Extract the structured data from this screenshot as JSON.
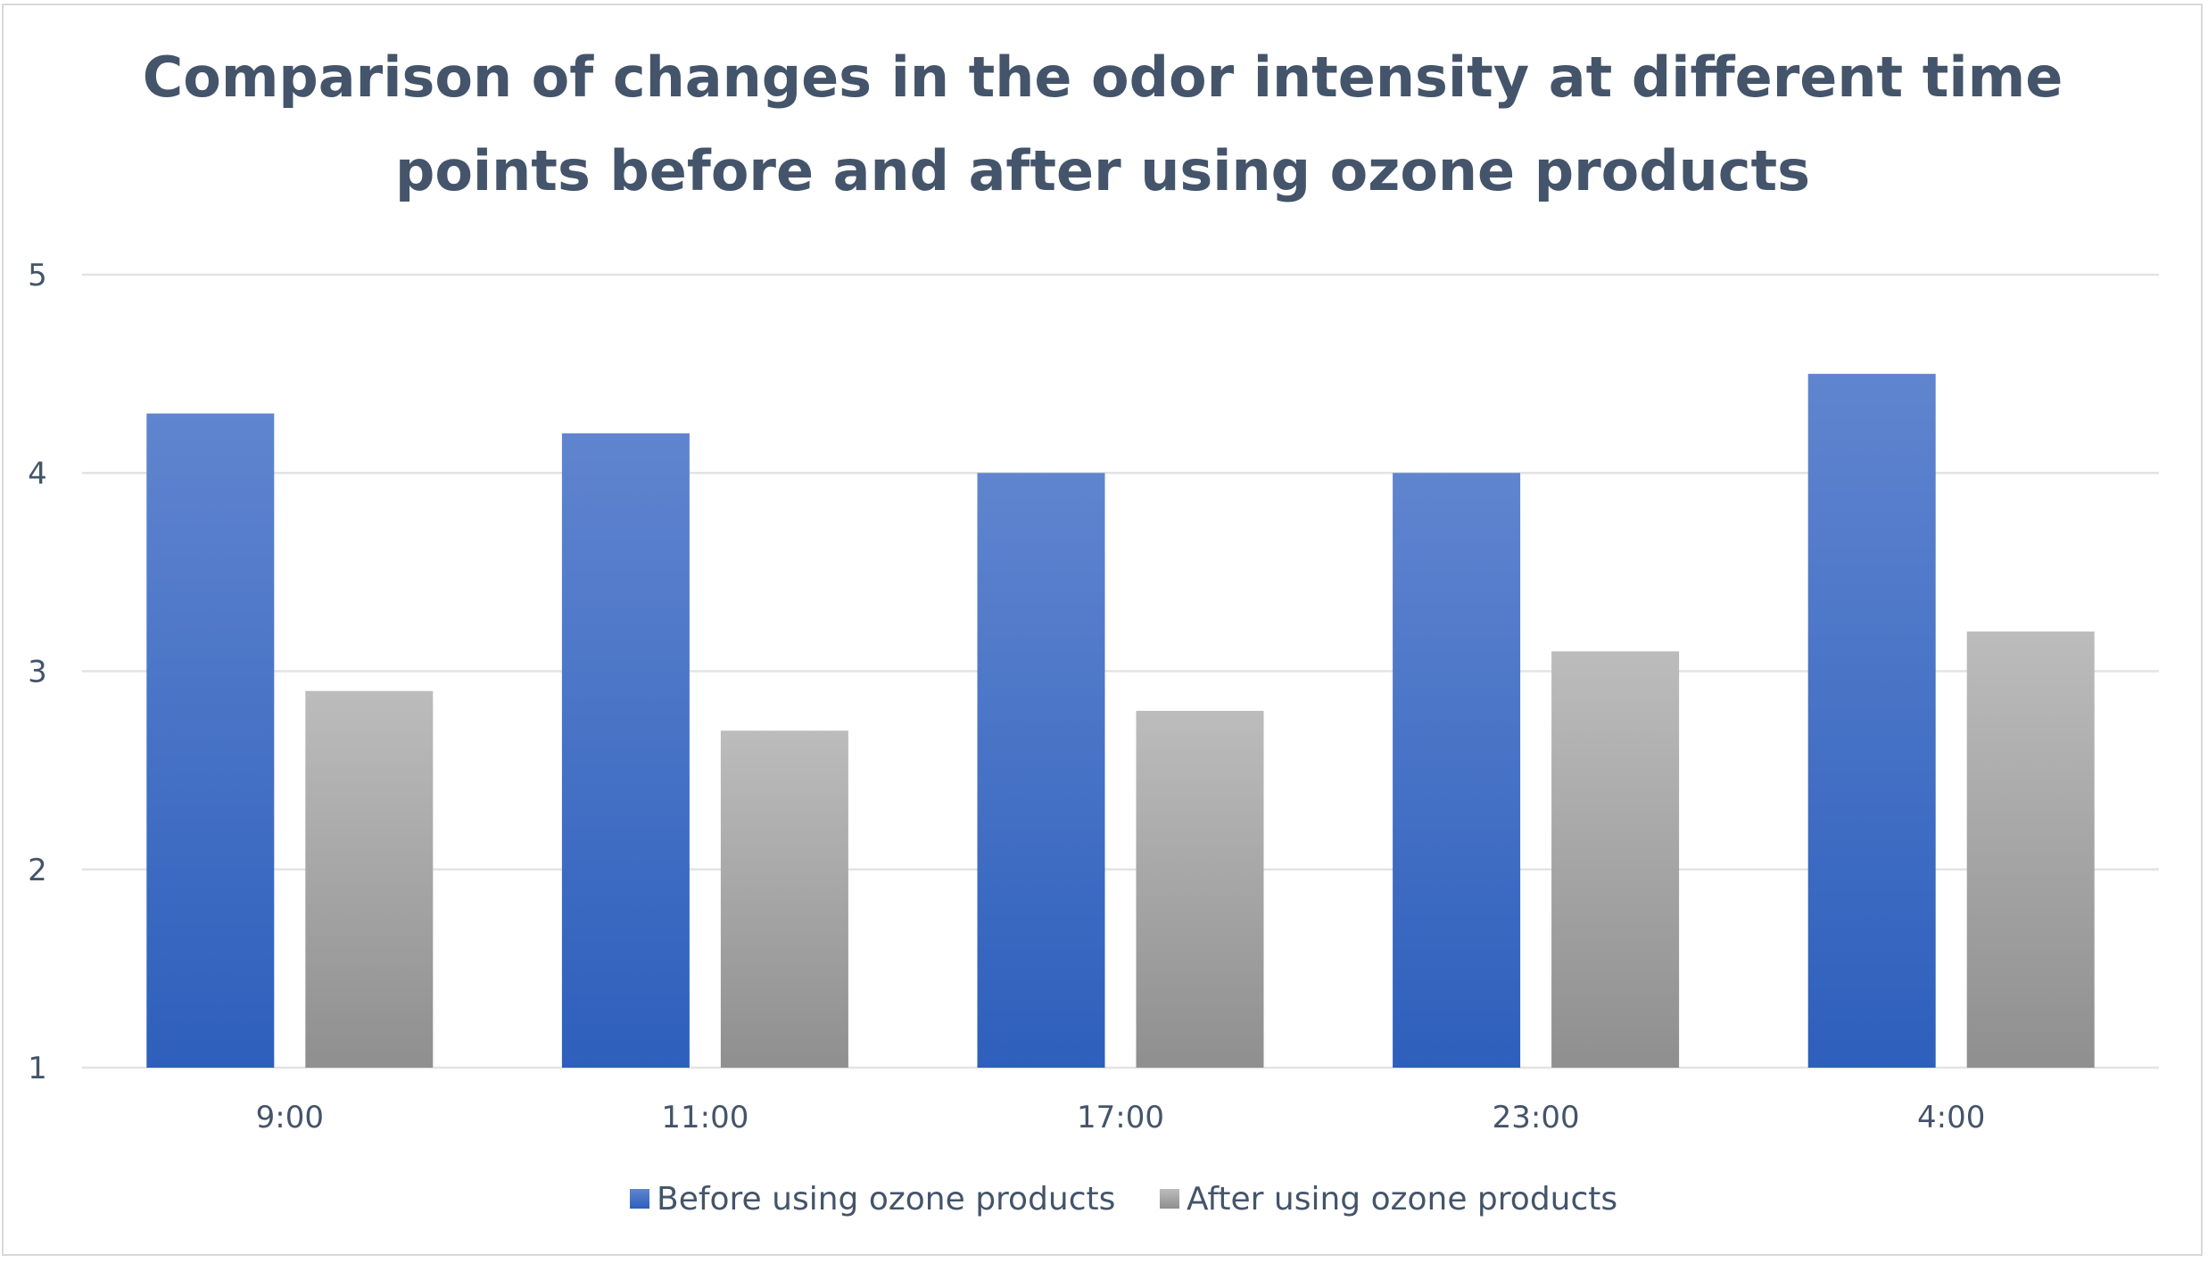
{
  "chart_data": {
    "type": "bar",
    "title_lines": [
      "Comparison of changes in the odor intensity at different time",
      "points before and after using ozone products"
    ],
    "categories": [
      "9:00",
      "11:00",
      "17:00",
      "23:00",
      "4:00"
    ],
    "series": [
      {
        "name": "Before using ozone products",
        "values": [
          4.3,
          4.2,
          4.0,
          4.0,
          4.5
        ],
        "color": "#4472c4"
      },
      {
        "name": "After using ozone products",
        "values": [
          2.9,
          2.7,
          2.8,
          3.1,
          3.2
        ],
        "color": "#a5a5a5"
      }
    ],
    "yticks": [
      "1",
      "2",
      "3",
      "4",
      "5"
    ],
    "ylim": [
      1,
      5
    ],
    "grid": true,
    "legend_position": "bottom"
  }
}
